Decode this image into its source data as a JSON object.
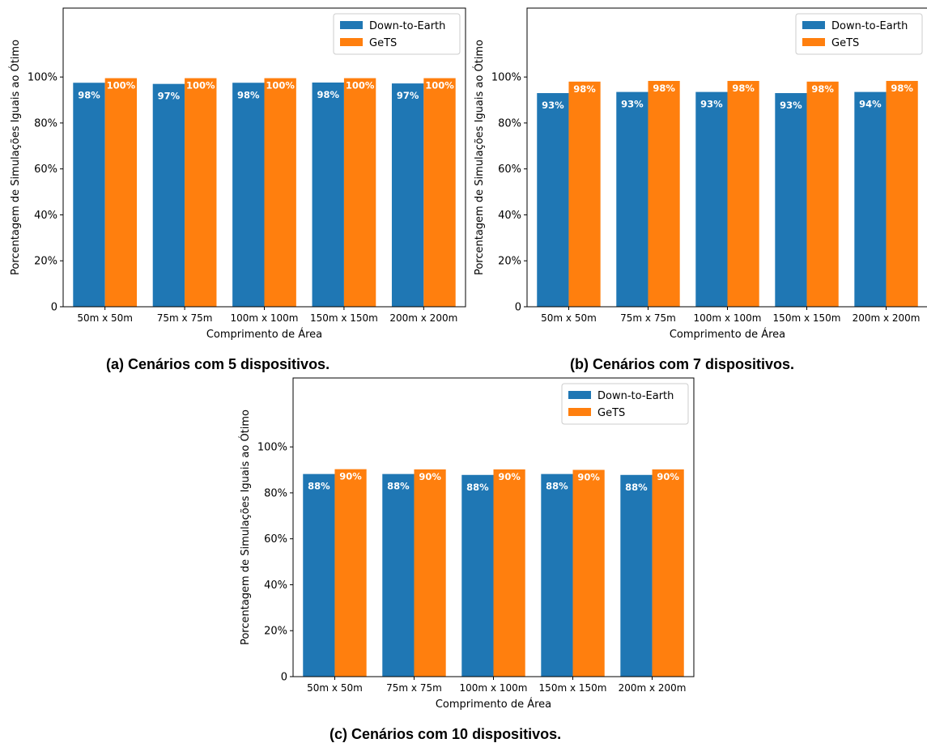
{
  "figure": {
    "y_axis_label": "Porcentagem de Simulações Iguais ao Ótimo",
    "x_axis_label": "Comprimento de Área"
  },
  "colors": {
    "down_to_earth": "#1f77b4",
    "gets": "#ff7f0e",
    "axis": "#000000",
    "bar_label_text": "#ffffff"
  },
  "chart_data": [
    {
      "type": "bar",
      "caption": "(a) Cenários com 5 dispositivos.",
      "xlabel": "Comprimento de Área",
      "ylabel": "Porcentagem de Simulações Iguais ao Ótimo",
      "ylim": [
        0,
        1.3
      ],
      "yticks": [
        "0",
        "20%",
        "40%",
        "60%",
        "80%",
        "100%"
      ],
      "categories": [
        "50m x 50m",
        "75m x 75m",
        "100m x 100m",
        "150m x 150m",
        "200m x 200m"
      ],
      "legend_position": "top-right",
      "series": [
        {
          "name": "Down-to-Earth",
          "values": [
            0.975,
            0.97,
            0.975,
            0.976,
            0.972
          ],
          "labels": [
            "98%",
            "97%",
            "98%",
            "98%",
            "97%"
          ]
        },
        {
          "name": "GeTS",
          "values": [
            0.995,
            0.995,
            0.995,
            0.995,
            0.995
          ],
          "labels": [
            "100%",
            "100%",
            "100%",
            "100%",
            "100%"
          ]
        }
      ]
    },
    {
      "type": "bar",
      "caption": "(b) Cenários com 7 dispositivos.",
      "xlabel": "Comprimento de Área",
      "ylabel": "Porcentagem de Simulações Iguais ao Ótimo",
      "ylim": [
        0,
        1.3
      ],
      "yticks": [
        "0",
        "20%",
        "40%",
        "60%",
        "80%",
        "100%"
      ],
      "categories": [
        "50m x 50m",
        "75m x 75m",
        "100m x 100m",
        "150m x 150m",
        "200m x 200m"
      ],
      "legend_position": "top-right",
      "series": [
        {
          "name": "Down-to-Earth",
          "values": [
            0.93,
            0.935,
            0.935,
            0.93,
            0.935
          ],
          "labels": [
            "93%",
            "93%",
            "93%",
            "93%",
            "94%"
          ]
        },
        {
          "name": "GeTS",
          "values": [
            0.98,
            0.983,
            0.983,
            0.98,
            0.983
          ],
          "labels": [
            "98%",
            "98%",
            "98%",
            "98%",
            "98%"
          ]
        }
      ]
    },
    {
      "type": "bar",
      "caption": "(c) Cenários com 10 dispositivos.",
      "xlabel": "Comprimento de Área",
      "ylabel": "Porcentagem de Simulações Iguais ao Ótimo",
      "ylim": [
        0,
        1.3
      ],
      "yticks": [
        "0",
        "20%",
        "40%",
        "60%",
        "80%",
        "100%"
      ],
      "categories": [
        "50m x 50m",
        "75m x 75m",
        "100m x 100m",
        "150m x 150m",
        "200m x 200m"
      ],
      "legend_position": "top-right",
      "series": [
        {
          "name": "Down-to-Earth",
          "values": [
            0.882,
            0.882,
            0.878,
            0.882,
            0.878
          ],
          "labels": [
            "88%",
            "88%",
            "88%",
            "88%",
            "88%"
          ]
        },
        {
          "name": "GeTS",
          "values": [
            0.903,
            0.902,
            0.902,
            0.9,
            0.902
          ],
          "labels": [
            "90%",
            "90%",
            "90%",
            "90%",
            "90%"
          ]
        }
      ]
    }
  ]
}
